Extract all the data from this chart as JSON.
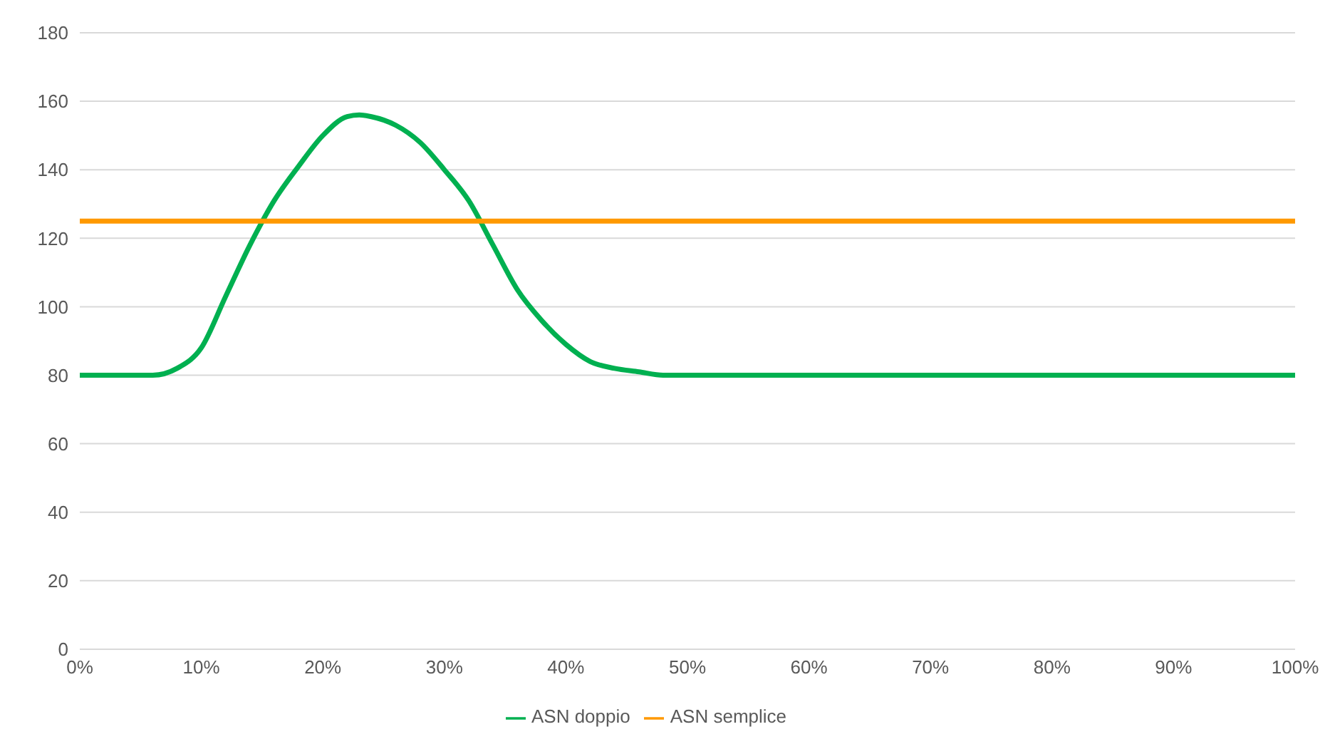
{
  "chart_data": {
    "type": "line",
    "x": [
      0,
      2,
      4,
      6,
      8,
      10,
      12,
      14,
      16,
      18,
      20,
      22,
      23,
      24,
      26,
      28,
      30,
      32,
      34,
      36,
      38,
      40,
      42,
      44,
      46,
      48,
      50,
      60,
      70,
      80,
      90,
      100
    ],
    "series": [
      {
        "name": "ASN doppio",
        "color": "#00b050",
        "values": [
          80,
          80,
          80,
          80,
          82,
          88,
          103,
          118,
          131,
          141,
          150,
          155.5,
          156,
          155.5,
          153,
          148,
          140,
          131,
          118,
          105,
          96,
          89,
          84,
          82,
          81,
          80,
          80,
          80,
          80,
          80,
          80,
          80
        ]
      },
      {
        "name": "ASN semplice",
        "color": "#ff9900",
        "values": [
          125,
          125,
          125,
          125,
          125,
          125,
          125,
          125,
          125,
          125,
          125,
          125,
          125,
          125,
          125,
          125,
          125,
          125,
          125,
          125,
          125,
          125,
          125,
          125,
          125,
          125,
          125,
          125,
          125,
          125,
          125,
          125
        ]
      }
    ],
    "xlim": [
      0,
      100
    ],
    "xticks": [
      {
        "value": 0,
        "label": "0%"
      },
      {
        "value": 10,
        "label": "10%"
      },
      {
        "value": 20,
        "label": "20%"
      },
      {
        "value": 30,
        "label": "30%"
      },
      {
        "value": 40,
        "label": "40%"
      },
      {
        "value": 50,
        "label": "50%"
      },
      {
        "value": 60,
        "label": "60%"
      },
      {
        "value": 70,
        "label": "70%"
      },
      {
        "value": 80,
        "label": "80%"
      },
      {
        "value": 90,
        "label": "90%"
      },
      {
        "value": 100,
        "label": "100%"
      }
    ],
    "ylim": [
      0,
      180
    ],
    "yticks": [
      0,
      20,
      40,
      60,
      80,
      100,
      120,
      140,
      160,
      180
    ],
    "grid": "y",
    "legend": "bottom",
    "marker": "none",
    "line_style": "solid"
  }
}
